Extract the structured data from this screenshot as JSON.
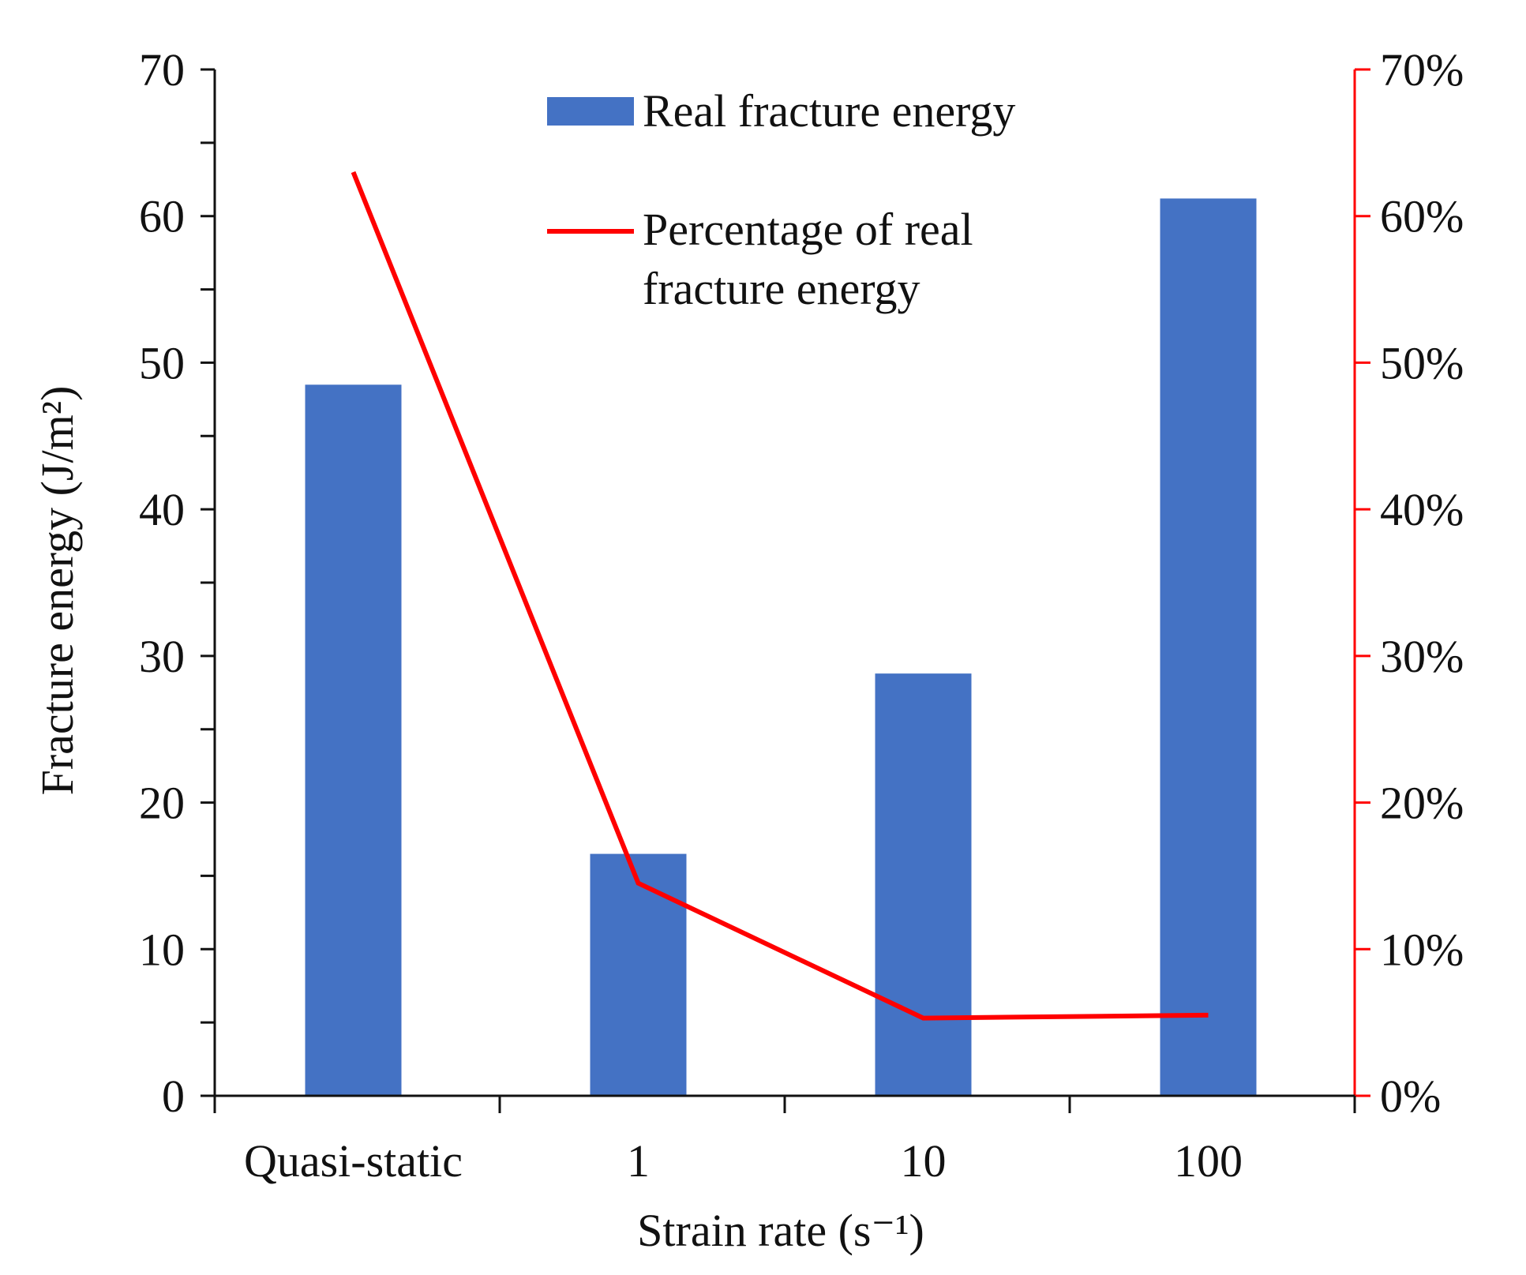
{
  "chart_data": {
    "type": "bar+line",
    "categories": [
      "Quasi-static",
      "1",
      "10",
      "100"
    ],
    "series": [
      {
        "name": "Real fracture energy",
        "kind": "bar",
        "axis": "left",
        "color": "#4472C4",
        "values": [
          48.5,
          16.5,
          28.8,
          61.2
        ]
      },
      {
        "name": "Percentage of real fracture energy",
        "kind": "line",
        "axis": "right",
        "color": "#FF0000",
        "values": [
          63,
          14.5,
          5.3,
          5.5
        ]
      }
    ],
    "xlabel": "Strain rate  (s⁻¹)",
    "ylabel": "Fracture energy (J/m²)",
    "y_left": {
      "lim": [
        0,
        70
      ],
      "ticks": [
        0,
        10,
        20,
        30,
        40,
        50,
        60,
        70
      ],
      "tick_labels": [
        "0",
        "10",
        "20",
        "30",
        "40",
        "50",
        "60",
        "70"
      ]
    },
    "y_right": {
      "lim": [
        0,
        70
      ],
      "ticks": [
        0,
        10,
        20,
        30,
        40,
        50,
        60,
        70
      ],
      "tick_labels": [
        "0%",
        "10%",
        "20%",
        "30%",
        "40%",
        "50%",
        "60%",
        "70%"
      ],
      "color": "#FF0000"
    },
    "legend": {
      "placement": "top-center",
      "line1": [
        "Real fracture energy"
      ],
      "line2": [
        "Percentage of real",
        "fracture energy"
      ]
    },
    "grid": false
  }
}
